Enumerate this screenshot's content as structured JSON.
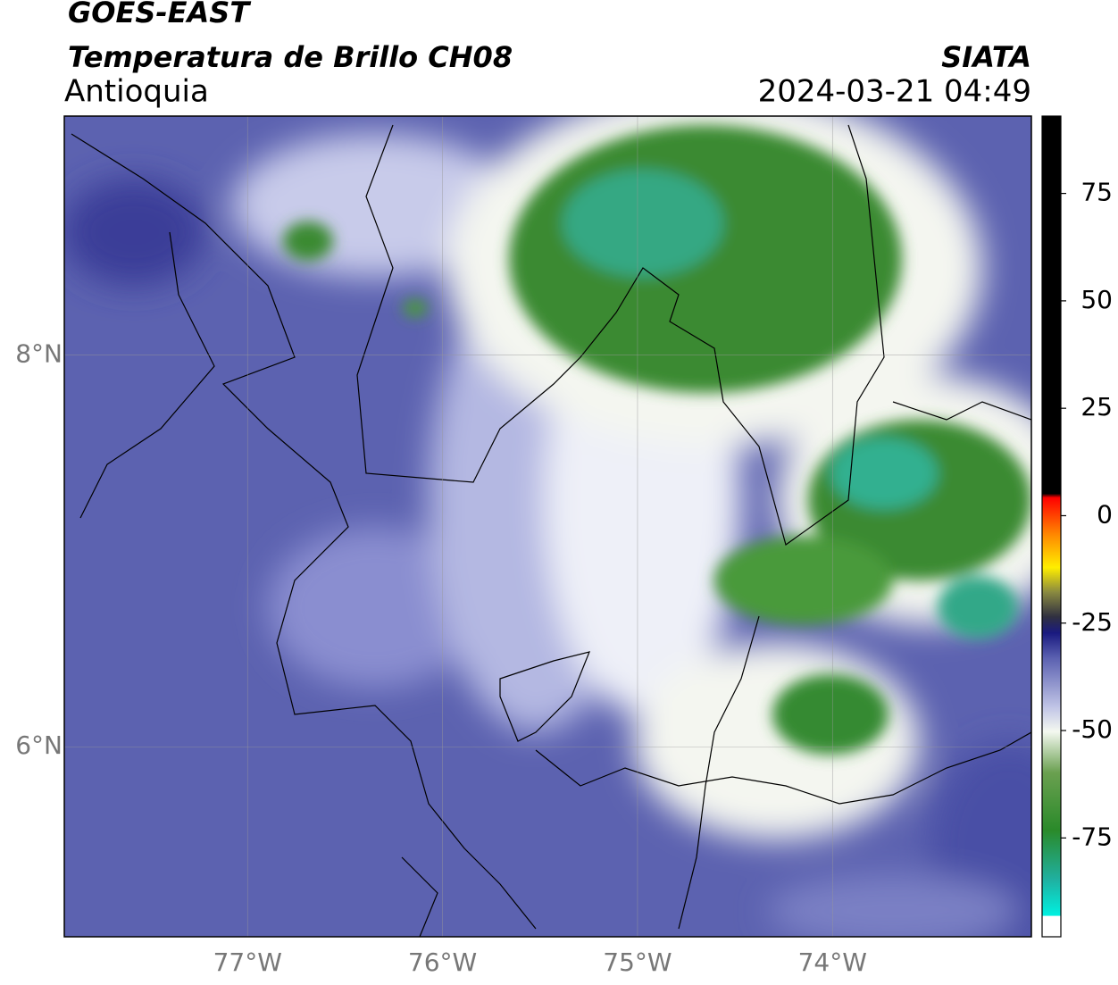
{
  "title": "GOES-EAST",
  "subtitle": "Temperatura de Brillo CH08",
  "region": "Antioquia",
  "source": "SIATA",
  "datetime": "2024-03-21 04:49",
  "map": {
    "lonlim": [
      -77.94,
      -72.98
    ],
    "latlim": [
      5.03,
      9.22
    ],
    "lon_ticks": [
      {
        "value": -77,
        "label": "77°W"
      },
      {
        "value": -76,
        "label": "76°W"
      },
      {
        "value": -75,
        "label": "75°W"
      },
      {
        "value": -74,
        "label": "74°W"
      }
    ],
    "lat_ticks": [
      {
        "value": 8,
        "label": "8°N"
      },
      {
        "value": 6,
        "label": "6°N"
      }
    ]
  },
  "colorbar": {
    "lim": [
      -98,
      93
    ],
    "ticks": [
      75,
      50,
      25,
      0,
      -25,
      -50,
      -75
    ]
  }
}
